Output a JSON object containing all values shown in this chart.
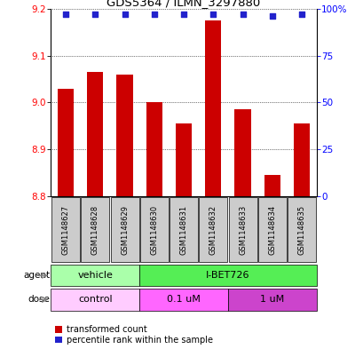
{
  "title": "GDS5364 / ILMN_3297880",
  "samples": [
    "GSM1148627",
    "GSM1148628",
    "GSM1148629",
    "GSM1148630",
    "GSM1148631",
    "GSM1148632",
    "GSM1148633",
    "GSM1148634",
    "GSM1148635"
  ],
  "bar_values": [
    9.03,
    9.065,
    9.06,
    9.0,
    8.955,
    9.175,
    8.985,
    8.845,
    8.955
  ],
  "percentile_values": [
    97,
    97,
    97,
    97,
    97,
    97,
    97,
    96,
    97
  ],
  "bar_bottom": 8.8,
  "ylim": [
    8.8,
    9.2
  ],
  "right_ylim": [
    0,
    100
  ],
  "right_yticks": [
    0,
    25,
    50,
    75,
    100
  ],
  "right_yticklabels": [
    "0",
    "25",
    "50",
    "75",
    "100%"
  ],
  "left_yticks": [
    8.8,
    8.9,
    9.0,
    9.1,
    9.2
  ],
  "bar_color": "#cc0000",
  "dot_color": "#2222cc",
  "agent_labels": [
    {
      "label": "vehicle",
      "start": 0,
      "end": 3
    },
    {
      "label": "I-BET726",
      "start": 3,
      "end": 9
    }
  ],
  "agent_colors": [
    "#aaffaa",
    "#55ee55"
  ],
  "dose_labels": [
    {
      "label": "control",
      "start": 0,
      "end": 3
    },
    {
      "label": "0.1 uM",
      "start": 3,
      "end": 6
    },
    {
      "label": "1 uM",
      "start": 6,
      "end": 9
    }
  ],
  "dose_colors": [
    "#ffccff",
    "#ff66ff",
    "#cc44cc"
  ],
  "sample_bg_color": "#cccccc",
  "legend_items": [
    {
      "color": "#cc0000",
      "label": "transformed count"
    },
    {
      "color": "#2222cc",
      "label": "percentile rank within the sample"
    }
  ]
}
